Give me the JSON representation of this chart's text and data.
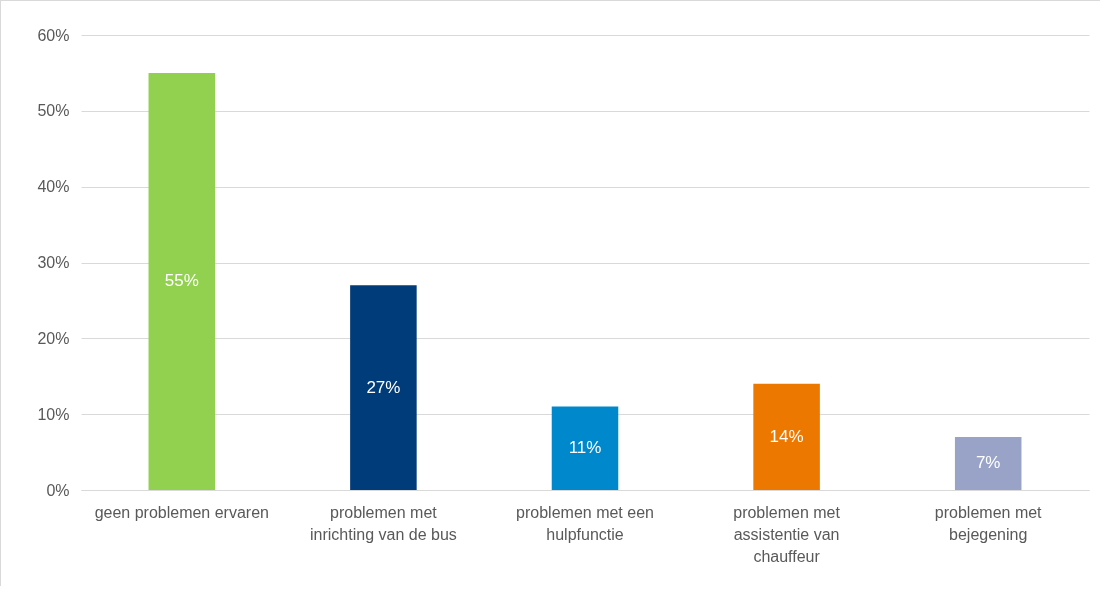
{
  "chart_data": {
    "type": "bar",
    "categories": [
      "geen problemen ervaren",
      "problemen met inrichting van de bus",
      "problemen met een hulpfunctie",
      "problemen met assistentie van chauffeur",
      "problemen met bejegening"
    ],
    "values": [
      55,
      27,
      11,
      14,
      7
    ],
    "colors": [
      "#92d050",
      "#003b7a",
      "#0088cc",
      "#ed7800",
      "#98a3c7"
    ],
    "value_labels": [
      "55%",
      "27%",
      "11%",
      "14%",
      "7%"
    ],
    "ylim": [
      0,
      60
    ],
    "yticks": [
      {
        "value": 0,
        "label": "0%"
      },
      {
        "value": 10,
        "label": "10%"
      },
      {
        "value": 20,
        "label": "20%"
      },
      {
        "value": 30,
        "label": "30%"
      },
      {
        "value": 40,
        "label": "40%"
      },
      {
        "value": 50,
        "label": "50%"
      },
      {
        "value": 60,
        "label": "60%"
      }
    ],
    "grid": "y"
  }
}
